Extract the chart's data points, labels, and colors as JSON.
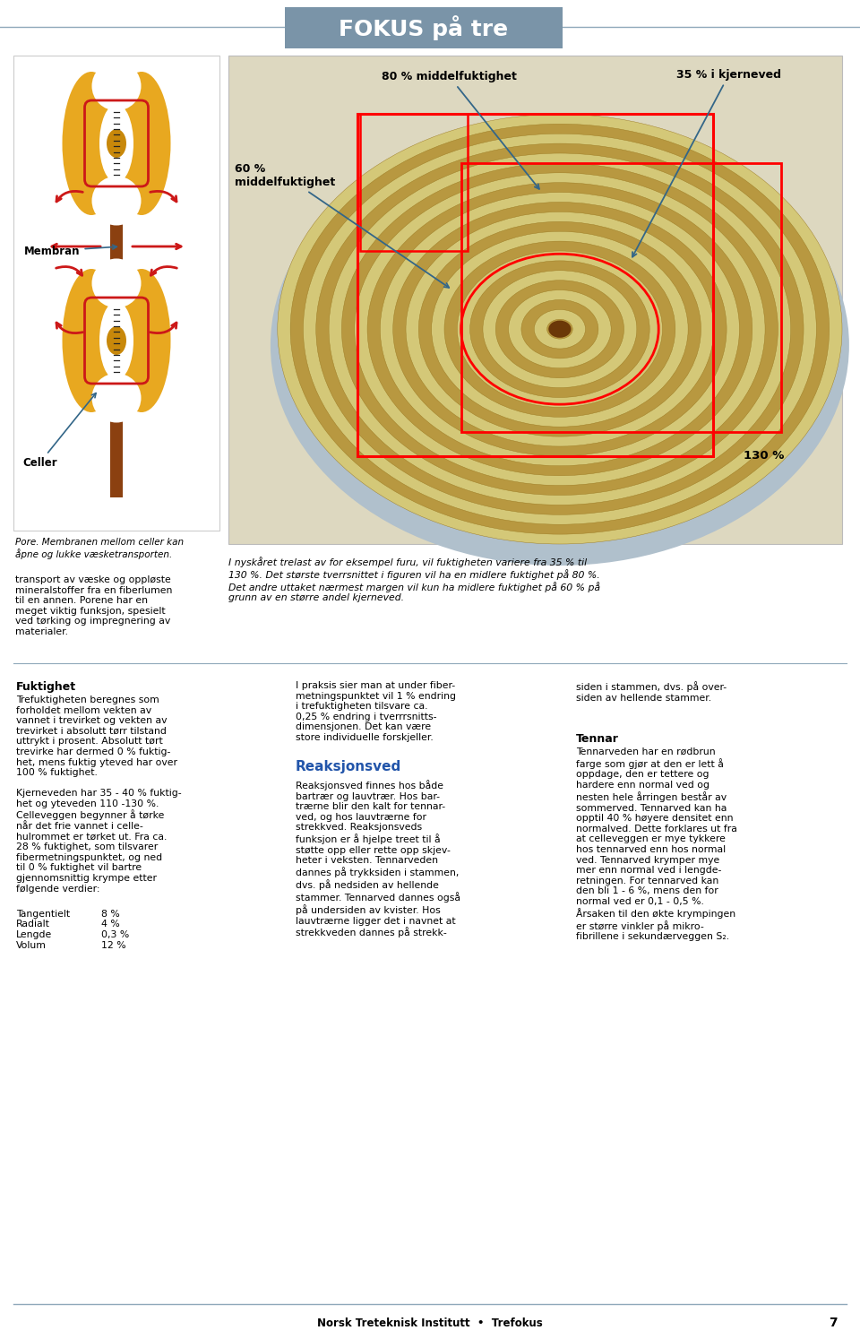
{
  "page_bg": "#ffffff",
  "header_bg": "#7a94a8",
  "header_text": "FOKUS på tre",
  "header_text_color": "#ffffff",
  "footer_text": "Norsk Treteknisk Institutt  •  Trefokus",
  "footer_page": "7",
  "separator_color": "#8fa8ba",
  "membran_label": "Membran",
  "celler_label": "Celler",
  "pore_text": "Pore. Membranen mellom celler kan\nåpne og lukke væsketransporten.",
  "cell_body_color": "#e8a020",
  "cell_core_color": "#8b4513",
  "cell_membrane_color": "#cc2020",
  "left_body_text": "transport av væske og oppløste\nmineralstoffer fra en fiberlumen\ntil en annen. Porene har en\nmeget viktig funksjon, spesielt\nved tørking og impregnering av\nmaterialer.",
  "label_80": "80 % middelfuktighet",
  "label_60": "60 %\nmiddelfuktighet",
  "label_35": "35 % i kjerneved",
  "label_130": "130 %",
  "caption_text": "I nyskåret trelast av for eksempel furu, vil fuktigheten variere fra 35 % til\n130 %. Det største tverrsnittet i figuren vil ha en midlere fuktighet på 80 %.\nDet andre uttaket nærmest margen vil kun ha midlere fuktighet på 60 % på\ngrunn av en større andel kjerneved.",
  "fuktighet_header": "Fuktighet",
  "fuktighet_text1": "Trefuktigheten beregnes som\nforholdet mellom vekten av\nvannet i trevirket og vekten av\ntrevirket i absolutt tørr tilstand\nuttrykt i prosent. Absolutt tørt\ntrevirke har dermed 0 % fuktig-\nhet, mens fuktig yteved har over\n100 % fuktighet.",
  "fuktighet_text2": "Kjerneveden har 35 - 40 % fuktig-\nhet og yteveden 110 -130 %.\nCelleveggen begynner å tørke\nnår det frie vannet i celle-\nhulrommet er tørket ut. Fra ca.\n28 % fuktighet, som tilsvarer\nfibermetningspunktet, og ned\ntil 0 % fuktighet vil bartre\ngjennomsnittig krympe etter\nfølgende verdier:",
  "table_rows": [
    [
      "Tangentielt",
      "8 %"
    ],
    [
      "Radialt",
      "4 %"
    ],
    [
      "Lengde",
      "0,3 %"
    ],
    [
      "Volum",
      "12 %"
    ]
  ],
  "middle_text": "I praksis sier man at under fiber-\nmetningspunktet vil 1 % endring\ni trefuktigheten tilsvare ca.\n0,25 % endring i tverrrsnitts-\ndimensjonen. Det kan være\nstore individuelle forskjeller.",
  "reaksjon_header": "Reaksjonsved",
  "reaksjon_text": "Reaksjonsved finnes hos både\nbartrær og lauvtrær. Hos bar-\ntrærne blir den kalt for tennar-\nved, og hos lauvtrærne for\nstrekkved. Reaksjonsveds\nfunksjon er å hjelpe treet til å\nstøtte opp eller rette opp skjev-\nheter i veksten. Tennarveden\ndannes på trykksiden i stammen,\ndvs. på nedsiden av hellende\nstammer. Tennarved dannes også\npå undersiden av kvister. Hos\nlauvtrærne ligger det i navnet at\nstrekkveden dannes på strekk-",
  "right_col_text1": "siden i stammen, dvs. på over-\nsiden av hellende stammer.",
  "tennar_header": "Tennar",
  "tennar_text": "Tennarveden har en rødbrun\nfarge som gjør at den er lett å\noppdage, den er tettere og\nhardere enn normal ved og\nnesten hele årringen består av\nsommerved. Tennarved kan ha\nopptil 40 % høyere densitet enn\nnormalved. Dette forklares ut fra\nat celleveggen er mye tykkere\nhos tennarved enn hos normal\nved. Tennarved krymper mye\nmer enn normal ved i lengde-\nretningen. For tennarved kan\nden bli 1 - 6 %, mens den for\nnormal ved er 0,1 - 0,5 %.\nÅrsaken til den økte krympingen\ner større vinkler på mikro-\nfibrillene i sekundærveggen S₂."
}
